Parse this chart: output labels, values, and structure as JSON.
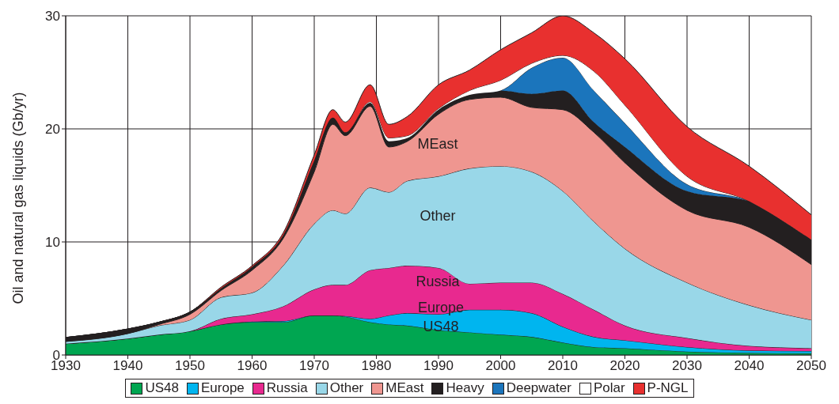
{
  "chart_data": {
    "type": "area",
    "stacked": true,
    "ylabel": "Oil and natural gas liquids (Gb/yr)",
    "x": [
      1930,
      1940,
      1945,
      1950,
      1955,
      1960,
      1965,
      1970,
      1973,
      1975,
      1979,
      1982,
      1985,
      1990,
      1995,
      2000,
      2005,
      2010,
      2015,
      2020,
      2030,
      2040,
      2050
    ],
    "series": [
      {
        "name": "US48",
        "color": "#00a651",
        "values": [
          1.0,
          1.45,
          1.8,
          2.1,
          2.7,
          2.9,
          2.9,
          3.5,
          3.5,
          3.4,
          2.9,
          2.7,
          2.6,
          2.2,
          2.0,
          1.8,
          1.6,
          1.1,
          0.7,
          0.6,
          0.3,
          0.2,
          0.15
        ]
      },
      {
        "name": "Europe",
        "color": "#00b5ef",
        "values": [
          0,
          0,
          0,
          0,
          0,
          0.05,
          0.1,
          0,
          0,
          0.05,
          0.3,
          0.8,
          1.1,
          1.4,
          2.0,
          2.2,
          2.1,
          1.4,
          0.9,
          0.7,
          0.4,
          0.2,
          0.2
        ]
      },
      {
        "name": "Russia",
        "color": "#e8298f",
        "values": [
          0,
          0,
          0,
          0,
          0.5,
          0.65,
          1.3,
          2.3,
          2.7,
          2.75,
          4.3,
          4.2,
          4.2,
          4.1,
          2.3,
          2.4,
          2.7,
          2.9,
          2.4,
          1.3,
          0.8,
          0.4,
          0.25
        ]
      },
      {
        "name": "Other",
        "color": "#99d7e8",
        "values": [
          0.2,
          0.45,
          0.8,
          1.0,
          1.9,
          1.9,
          3.6,
          5.8,
          6.6,
          6.3,
          7.3,
          6.7,
          7.5,
          8.1,
          10.2,
          10.3,
          9.8,
          9.1,
          7.8,
          6.8,
          4.9,
          3.6,
          2.5
        ]
      },
      {
        "name": "MEast",
        "color": "#ef9690",
        "values": [
          0,
          0,
          0.1,
          0.5,
          0.6,
          2.0,
          2.4,
          4.6,
          7.6,
          6.9,
          7.2,
          4.0,
          3.5,
          5.5,
          6.1,
          6.1,
          5.7,
          7.2,
          7.9,
          7.6,
          6.4,
          6.9,
          4.9
        ]
      },
      {
        "name": "Heavy",
        "color": "#231f20",
        "values": [
          0.35,
          0.4,
          0.2,
          0.2,
          0.2,
          0.3,
          0.3,
          1.0,
          0.6,
          0.3,
          0.3,
          0.5,
          0.3,
          0.4,
          0.4,
          0.6,
          1.2,
          1.7,
          0.9,
          1.4,
          1.7,
          2.3,
          2.2
        ]
      },
      {
        "name": "Deepwater",
        "color": "#1b75bc",
        "values": [
          0,
          0,
          0,
          0,
          0,
          0,
          0,
          0,
          0,
          0,
          0,
          0,
          0,
          0,
          0,
          0,
          2.3,
          2.9,
          2.8,
          2.1,
          0.6,
          0,
          0
        ]
      },
      {
        "name": "Polar",
        "color": "#ffffff",
        "values": [
          0,
          0,
          0,
          0,
          0,
          0,
          0,
          0,
          0,
          0,
          0.1,
          0.3,
          0.2,
          0.1,
          0.4,
          0.9,
          0.4,
          0.2,
          1.7,
          1.6,
          0.7,
          0,
          0
        ]
      },
      {
        "name": "P-NGL",
        "color": "#e8302f",
        "values": [
          0,
          0,
          0,
          0,
          0.1,
          0.1,
          0.2,
          0.5,
          0.7,
          0.9,
          1.5,
          1.2,
          1.7,
          2.1,
          1.8,
          2.7,
          2.7,
          3.5,
          3.4,
          4.1,
          4.4,
          3.1,
          2.2
        ]
      }
    ],
    "xlim": [
      1930,
      2050
    ],
    "xticks": [
      1930,
      1940,
      1950,
      1960,
      1970,
      1980,
      1990,
      2000,
      2010,
      2020,
      2030,
      2040,
      2050
    ],
    "ylim": [
      0,
      30
    ],
    "yticks": [
      0,
      10,
      20,
      30
    ],
    "grid": true,
    "legend": "bottom",
    "annotations": [
      "MEast",
      "Other",
      "Russia",
      "Europe",
      "US48"
    ]
  }
}
